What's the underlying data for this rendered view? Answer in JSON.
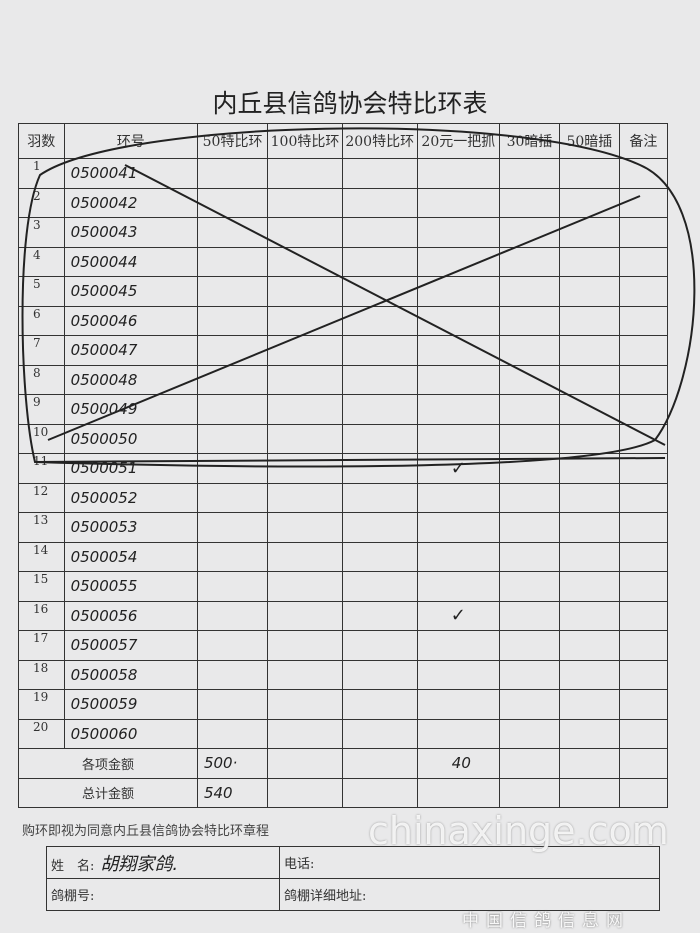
{
  "title": "内丘县信鸽协会特比环表",
  "headers": [
    "羽数",
    "环号",
    "50特比环",
    "100特比环",
    "200特比环",
    "20元一把抓",
    "30暗插",
    "50暗插",
    "备注"
  ],
  "rows": [
    {
      "n": "1",
      "ring": "0500041",
      "c20": ""
    },
    {
      "n": "2",
      "ring": "0500042",
      "c20": ""
    },
    {
      "n": "3",
      "ring": "0500043",
      "c20": ""
    },
    {
      "n": "4",
      "ring": "0500044",
      "c20": ""
    },
    {
      "n": "5",
      "ring": "0500045",
      "c20": ""
    },
    {
      "n": "6",
      "ring": "0500046",
      "c20": ""
    },
    {
      "n": "7",
      "ring": "0500047",
      "c20": ""
    },
    {
      "n": "8",
      "ring": "0500048",
      "c20": ""
    },
    {
      "n": "9",
      "ring": "0500049",
      "c20": ""
    },
    {
      "n": "10",
      "ring": "0500050",
      "c20": ""
    },
    {
      "n": "11",
      "ring": "0500051",
      "c20": "✓"
    },
    {
      "n": "12",
      "ring": "0500052",
      "c20": ""
    },
    {
      "n": "13",
      "ring": "0500053",
      "c20": ""
    },
    {
      "n": "14",
      "ring": "0500054",
      "c20": ""
    },
    {
      "n": "15",
      "ring": "0500055",
      "c20": ""
    },
    {
      "n": "16",
      "ring": "0500056",
      "c20": "✓"
    },
    {
      "n": "17",
      "ring": "0500057",
      "c20": ""
    },
    {
      "n": "18",
      "ring": "0500058",
      "c20": ""
    },
    {
      "n": "19",
      "ring": "0500059",
      "c20": ""
    },
    {
      "n": "20",
      "ring": "0500060",
      "c20": ""
    }
  ],
  "summary": {
    "item_label": "各项金额",
    "item_50": "500·",
    "item_20": "40",
    "total_label": "总计金额",
    "total": "540"
  },
  "note": "购环即视为同意内丘县信鸽协会特比环章程",
  "info": {
    "name_label": "姓　名:",
    "name_value": "胡翔家鸽.",
    "phone_label": "电话:",
    "loft_label": "鸽棚号:",
    "address_label": "鸽棚详细地址:"
  },
  "watermark": {
    "main": "chinaxinge.com",
    "sub": "中国信鸽信息网"
  }
}
